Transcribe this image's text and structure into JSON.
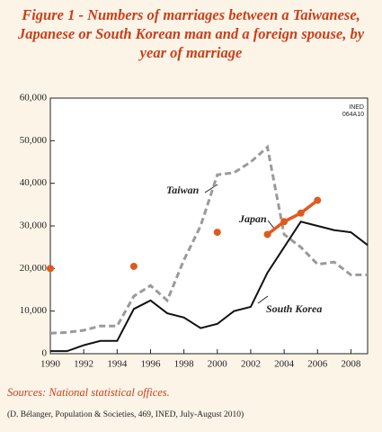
{
  "chart_data": {
    "type": "line",
    "title": "Figure 1 - Numbers of marriages between a Taiwanese, Japanese or South Korean man and a foreign spouse, by year of marriage",
    "x": [
      1990,
      1991,
      1992,
      1993,
      1994,
      1995,
      1996,
      1997,
      1998,
      1999,
      2000,
      2001,
      2002,
      2003,
      2004,
      2005,
      2006,
      2007,
      2008,
      2009
    ],
    "series": [
      {
        "name": "Taiwan",
        "color": "#9a9a9a",
        "dashed": true,
        "values": [
          4800,
          5000,
          5500,
          6500,
          6500,
          13500,
          16000,
          12500,
          22000,
          30000,
          42000,
          42500,
          45000,
          48500,
          28000,
          25000,
          21000,
          21500,
          18500,
          18500
        ]
      },
      {
        "name": "Japan",
        "color": "#e05a1e",
        "dashed": false,
        "markers": true,
        "values": [
          20000,
          null,
          null,
          null,
          null,
          20500,
          null,
          null,
          null,
          null,
          28500,
          null,
          null,
          28000,
          31000,
          33000,
          36000,
          null,
          null,
          null
        ]
      },
      {
        "name": "South Korea",
        "color": "#111111",
        "dashed": false,
        "values": [
          600,
          600,
          2000,
          3000,
          3000,
          10500,
          12500,
          9500,
          8500,
          6000,
          7000,
          10000,
          11000,
          19000,
          25000,
          31000,
          30000,
          29000,
          28500,
          25500
        ]
      }
    ],
    "xlim": [
      1990,
      2009
    ],
    "xticks": [
      1990,
      1992,
      1994,
      1996,
      1998,
      2000,
      2002,
      2004,
      2006,
      2008
    ],
    "ylim": [
      0,
      60000
    ],
    "yticks": [
      0,
      {
        "value": 10000,
        "label": "10,000"
      },
      {
        "value": 20000,
        "label": "20,000"
      },
      {
        "value": 30000,
        "label": "30,000"
      },
      {
        "value": 40000,
        "label": "40,000"
      },
      {
        "value": 50000,
        "label": "50,000"
      },
      {
        "value": 60000,
        "label": "60,000"
      }
    ],
    "code": [
      "INED",
      "064A10"
    ],
    "source": "Sources: National statistical offices.",
    "citation": "(D. Bélanger, Population & Societies, 469, INED, July-August 2010)"
  }
}
